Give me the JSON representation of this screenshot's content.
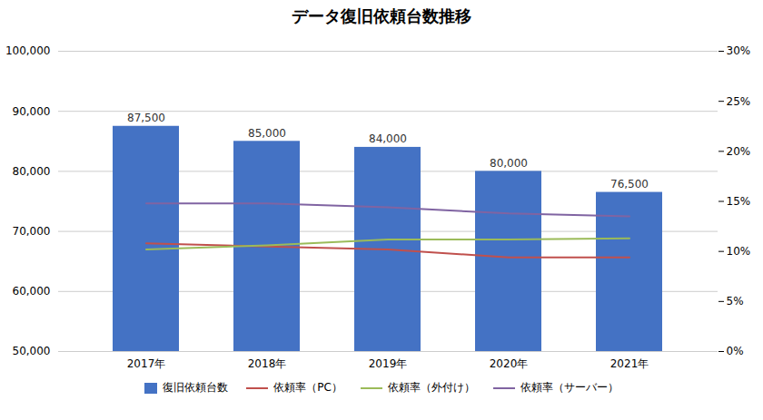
{
  "chart_data": {
    "type": "bar",
    "title": "データ復旧依頼台数推移",
    "categories": [
      "2017年",
      "2018年",
      "2019年",
      "2020年",
      "2021年"
    ],
    "series": [
      {
        "name": "復旧依頼台数",
        "type": "bar",
        "color": "#4472C4",
        "values": [
          87500,
          85000,
          84000,
          80000,
          76500
        ],
        "value_labels": [
          "87,500",
          "85,000",
          "84,000",
          "80,000",
          "76,500"
        ],
        "data_labels": true
      },
      {
        "name": "依頼率（PC）",
        "type": "line",
        "axis": "y2",
        "color": "#C0504D",
        "values": [
          0.108,
          0.105,
          0.102,
          0.094,
          0.094
        ]
      },
      {
        "name": "依頼率（外付け）",
        "type": "line",
        "axis": "y2",
        "color": "#9BBB59",
        "values": [
          0.102,
          0.106,
          0.112,
          0.112,
          0.113
        ]
      },
      {
        "name": "依頼率（サーバー）",
        "type": "line",
        "axis": "y2",
        "color": "#8064A2",
        "values": [
          0.148,
          0.148,
          0.144,
          0.138,
          0.135
        ]
      }
    ],
    "ylim": [
      50000,
      100000
    ],
    "yticks": [
      {
        "value": 50000,
        "label": "50,000"
      },
      {
        "value": 60000,
        "label": "60,000"
      },
      {
        "value": 70000,
        "label": "70,000"
      },
      {
        "value": 80000,
        "label": "80,000"
      },
      {
        "value": 90000,
        "label": "90,000"
      },
      {
        "value": 100000,
        "label": "100,000"
      }
    ],
    "y2lim": [
      0,
      0.3
    ],
    "y2ticks": [
      {
        "value": 0.0,
        "label": "0%"
      },
      {
        "value": 0.05,
        "label": "5%"
      },
      {
        "value": 0.1,
        "label": "10%"
      },
      {
        "value": 0.15,
        "label": "15%"
      },
      {
        "value": 0.2,
        "label": "20%"
      },
      {
        "value": 0.25,
        "label": "25%"
      },
      {
        "value": 0.3,
        "label": "30%"
      }
    ],
    "grid": true,
    "legend": "bottom"
  }
}
